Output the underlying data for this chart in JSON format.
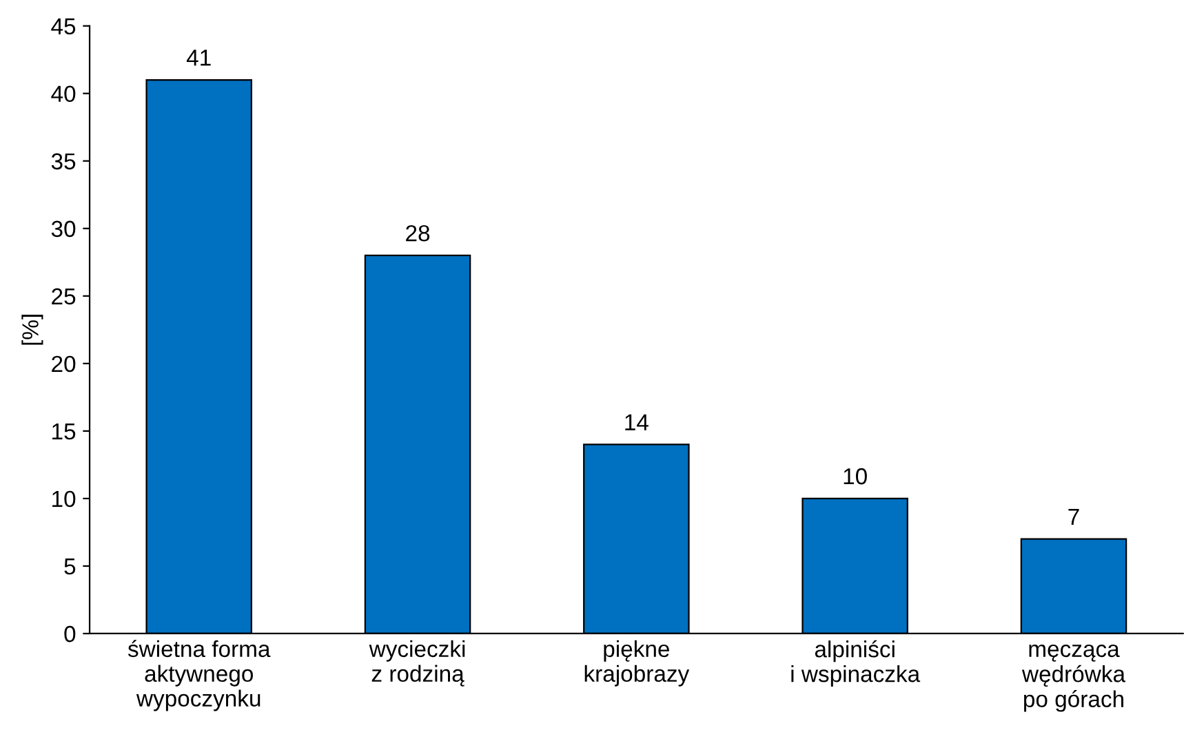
{
  "chart_data": {
    "type": "bar",
    "ylabel": "[%]",
    "categories": [
      "świetna forma\naktywnego\nwypoczynku",
      "wycieczki\nz rodziną",
      "piękne\nkrajobrazy",
      "alpiniści\ni wspinaczka",
      "męcząca\nwędrówka\npo górach"
    ],
    "values": [
      41,
      28,
      14,
      10,
      7
    ],
    "color": "#0070c0",
    "ylim": [
      0,
      45
    ],
    "yticks": [
      0,
      5,
      10,
      15,
      20,
      25,
      30,
      35,
      40,
      45
    ],
    "data_labels": true,
    "grid": false,
    "legend": false
  }
}
